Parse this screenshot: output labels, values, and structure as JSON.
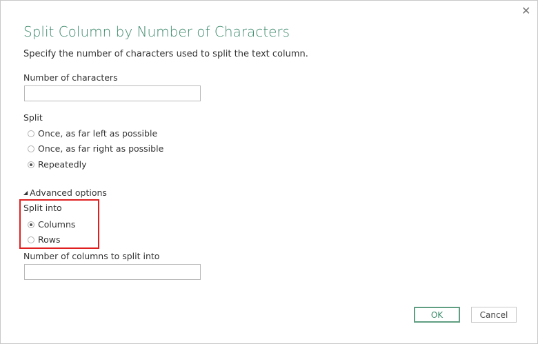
{
  "dialog": {
    "title": "Split Column by Number of Characters",
    "description": "Specify the number of characters used to split the text column.",
    "close_icon": "close-icon"
  },
  "num_chars": {
    "label": "Number of characters",
    "value": ""
  },
  "split": {
    "label": "Split",
    "options": [
      {
        "label": "Once, as far left as possible",
        "selected": false
      },
      {
        "label": "Once, as far right as possible",
        "selected": false
      },
      {
        "label": "Repeatedly",
        "selected": true
      }
    ]
  },
  "advanced": {
    "label": "Advanced options",
    "expanded": true,
    "split_into_label": "Split into",
    "split_into_options": [
      {
        "label": "Columns",
        "selected": true
      },
      {
        "label": "Rows",
        "selected": false
      }
    ],
    "num_columns_label": "Number of columns to split into",
    "num_columns_value": "",
    "highlight_color": "#e02020"
  },
  "buttons": {
    "ok": "OK",
    "cancel": "Cancel"
  }
}
